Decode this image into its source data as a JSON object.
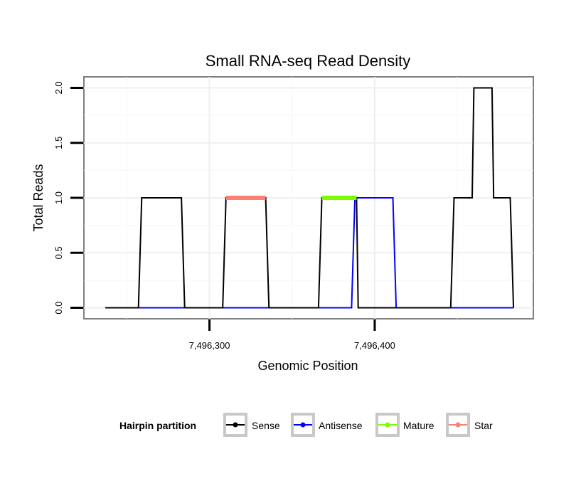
{
  "chart_data": {
    "type": "line",
    "title": "Small RNA-seq Read Density",
    "xlabel": "Genomic Position",
    "ylabel": "Total Reads",
    "xlim": [
      7496224,
      7496496
    ],
    "ylim": [
      -0.1,
      2.1
    ],
    "x_ticks": [
      7496300,
      7496400
    ],
    "x_tick_labels": [
      "7,496,300",
      "7,496,400"
    ],
    "y_ticks": [
      0,
      0.5,
      1,
      1.5,
      2
    ],
    "y_tick_labels": [
      "0.0",
      "0.5",
      "1.0",
      "1.5",
      "2.0"
    ],
    "grid": true,
    "legend": {
      "title": "Hairpin partition",
      "position": "bottom",
      "entries": [
        "Sense",
        "Antisense",
        "Mature",
        "Star"
      ]
    },
    "series": [
      {
        "name": "Sense",
        "color": "#000000",
        "x": [
          7496237,
          7496257,
          7496259,
          7496283,
          7496285,
          7496308,
          7496310,
          7496334,
          7496336,
          7496366,
          7496368,
          7496389,
          7496390,
          7496446,
          7496448,
          7496459,
          7496460,
          7496471,
          7496472,
          7496482,
          7496484
        ],
        "y": [
          0,
          0,
          1,
          1,
          0,
          0,
          1,
          1,
          0,
          0,
          1,
          1,
          0,
          0,
          1,
          1,
          2,
          2,
          1,
          1,
          0
        ]
      },
      {
        "name": "Antisense",
        "color": "#0000ff",
        "x": [
          7496237,
          7496386,
          7496388,
          7496411,
          7496413,
          7496484
        ],
        "y": [
          0,
          0,
          1,
          1,
          0,
          0
        ]
      },
      {
        "name": "Mature",
        "color": "#7cfc00",
        "x": [
          7496368,
          7496389
        ],
        "y": [
          1,
          1
        ]
      },
      {
        "name": "Star",
        "color": "#fa8072",
        "x": [
          7496310,
          7496334
        ],
        "y": [
          1,
          1
        ]
      }
    ]
  }
}
